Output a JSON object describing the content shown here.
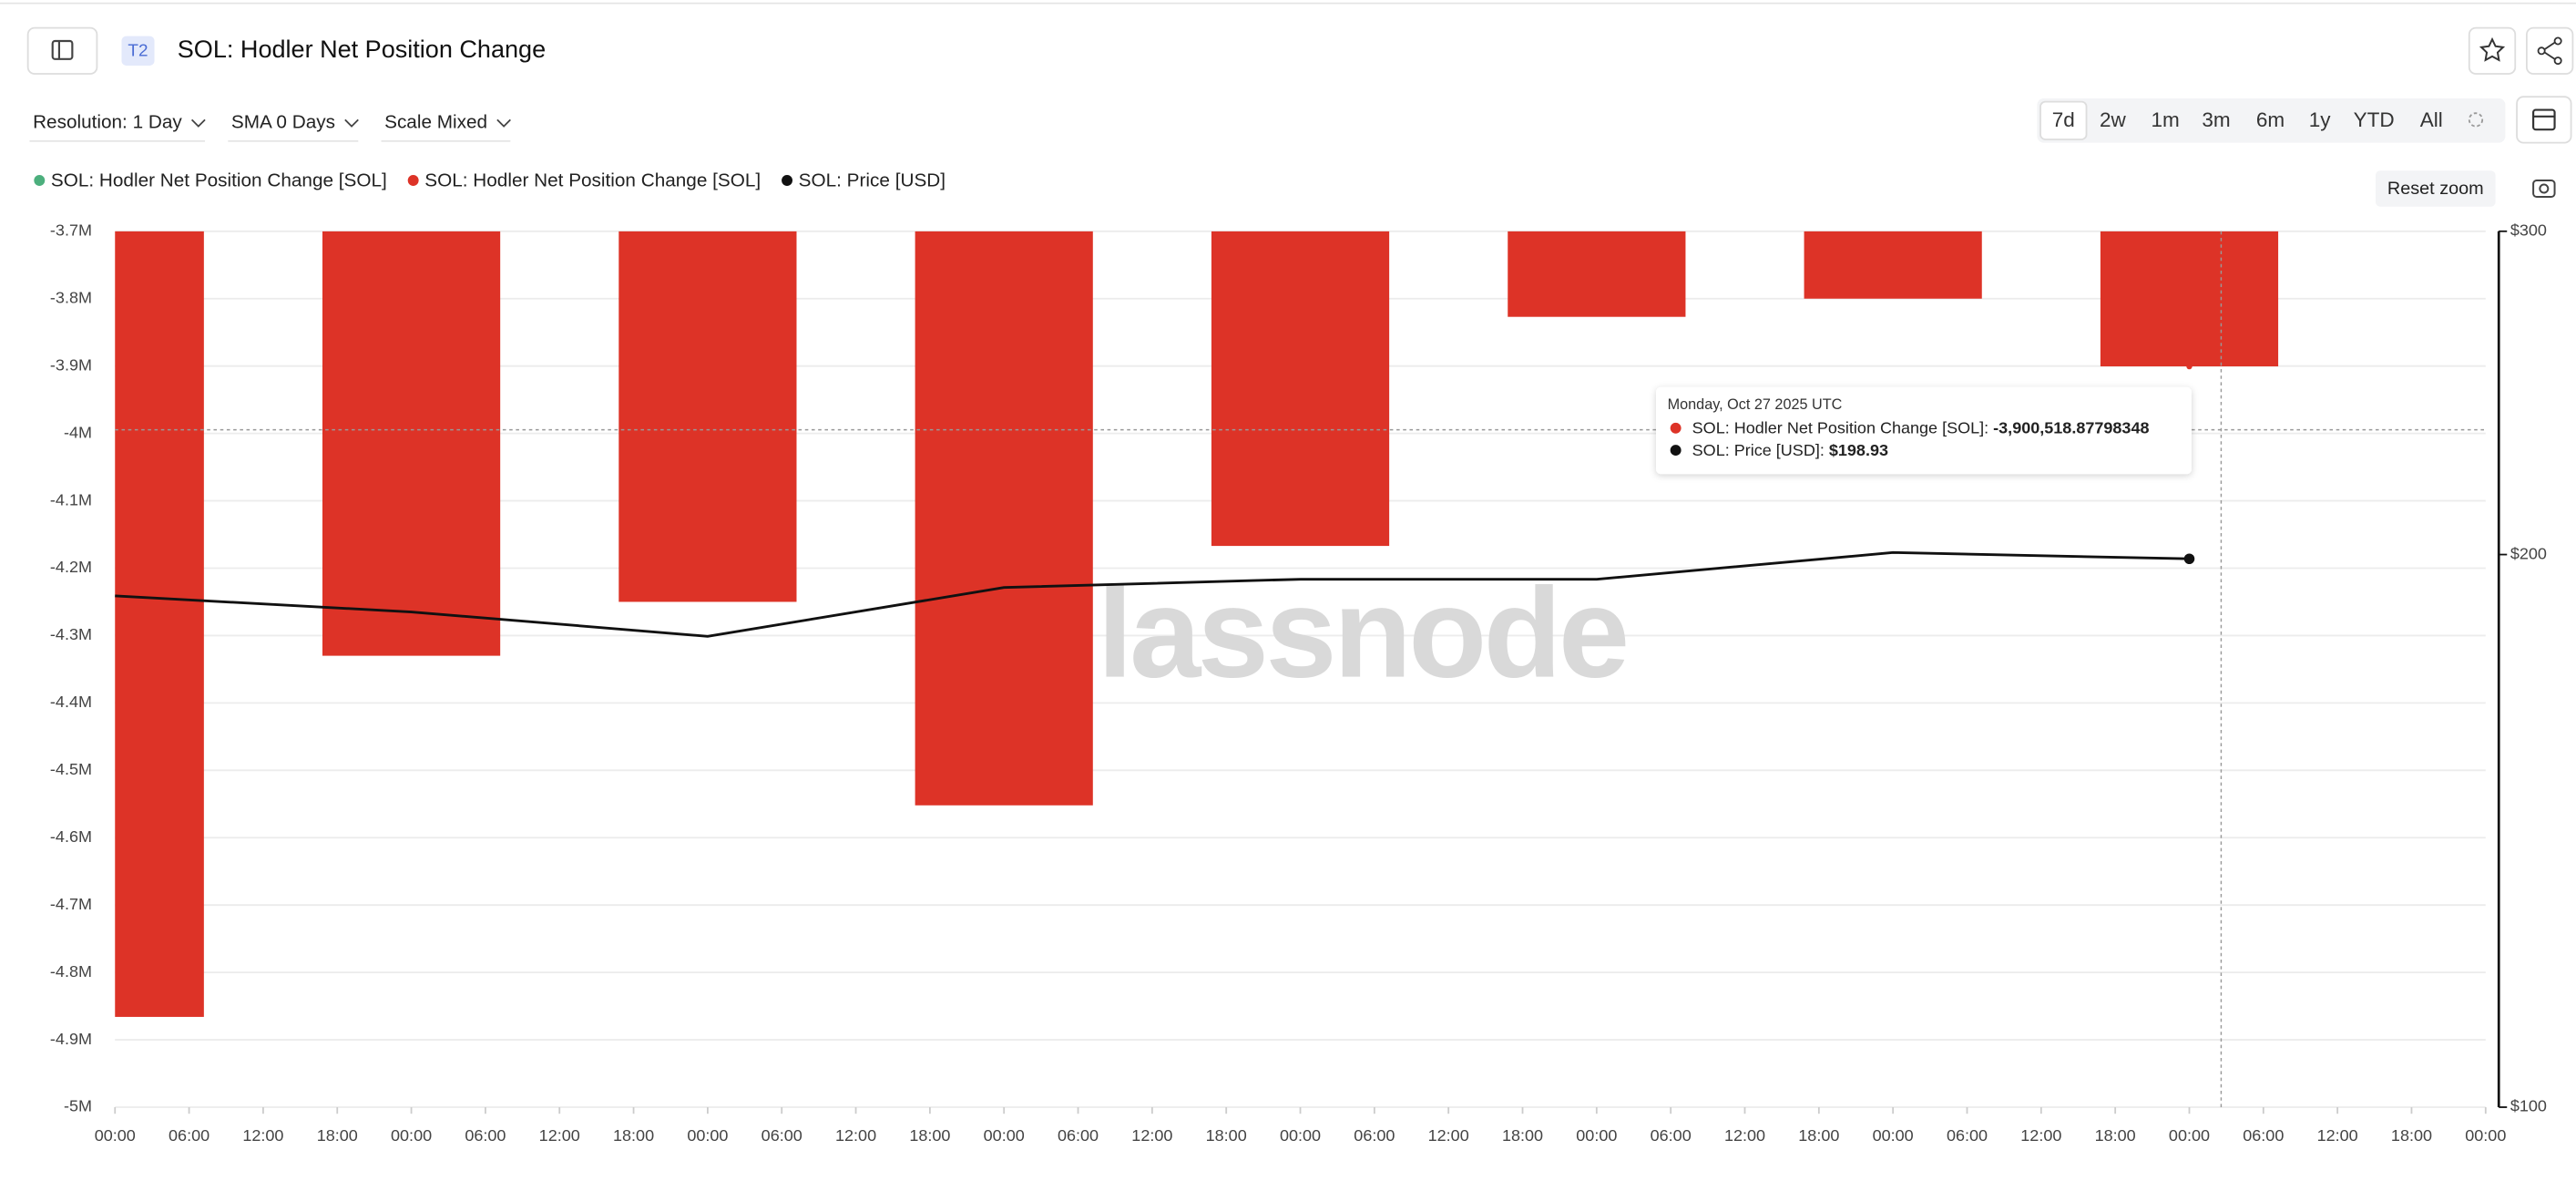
{
  "header": {
    "badge": "T2",
    "title": "SOL: Hodler Net Position Change"
  },
  "controls": {
    "dropdowns": [
      "Resolution: 1 Day",
      "SMA 0 Days",
      "Scale Mixed"
    ],
    "ranges": [
      "7d",
      "2w",
      "1m",
      "3m",
      "6m",
      "1y",
      "YTD",
      "All"
    ],
    "selected_range": "7d",
    "reset_zoom": "Reset zoom"
  },
  "chart_data": {
    "type": "bar",
    "x": [
      0,
      24,
      48,
      72,
      96,
      120,
      144,
      168
    ],
    "xlim": [
      0,
      192
    ],
    "xticks": [
      {
        "value": 0,
        "label": "00:00"
      },
      {
        "value": 6,
        "label": "06:00"
      },
      {
        "value": 12,
        "label": "12:00"
      },
      {
        "value": 18,
        "label": "18:00"
      },
      {
        "value": 24,
        "label": "00:00"
      },
      {
        "value": 30,
        "label": "06:00"
      },
      {
        "value": 36,
        "label": "12:00"
      },
      {
        "value": 42,
        "label": "18:00"
      },
      {
        "value": 48,
        "label": "00:00"
      },
      {
        "value": 54,
        "label": "06:00"
      },
      {
        "value": 60,
        "label": "12:00"
      },
      {
        "value": 66,
        "label": "18:00"
      },
      {
        "value": 72,
        "label": "00:00"
      },
      {
        "value": 78,
        "label": "06:00"
      },
      {
        "value": 84,
        "label": "12:00"
      },
      {
        "value": 90,
        "label": "18:00"
      },
      {
        "value": 96,
        "label": "00:00"
      },
      {
        "value": 102,
        "label": "06:00"
      },
      {
        "value": 108,
        "label": "12:00"
      },
      {
        "value": 114,
        "label": "18:00"
      },
      {
        "value": 120,
        "label": "00:00"
      },
      {
        "value": 126,
        "label": "06:00"
      },
      {
        "value": 132,
        "label": "12:00"
      },
      {
        "value": 138,
        "label": "18:00"
      },
      {
        "value": 144,
        "label": "00:00"
      },
      {
        "value": 150,
        "label": "06:00"
      },
      {
        "value": 156,
        "label": "12:00"
      },
      {
        "value": 162,
        "label": "18:00"
      },
      {
        "value": 168,
        "label": "00:00"
      },
      {
        "value": 174,
        "label": "06:00"
      },
      {
        "value": 180,
        "label": "12:00"
      },
      {
        "value": 186,
        "label": "18:00"
      },
      {
        "value": 192,
        "label": "00:00"
      }
    ],
    "ylim": [
      -5000000,
      -3700000
    ],
    "yticks": [
      {
        "value": -3700000,
        "label": "-3.7M"
      },
      {
        "value": -3800000,
        "label": "-3.8M"
      },
      {
        "value": -3900000,
        "label": "-3.9M"
      },
      {
        "value": -4000000,
        "label": "-4M"
      },
      {
        "value": -4100000,
        "label": "-4.1M"
      },
      {
        "value": -4200000,
        "label": "-4.2M"
      },
      {
        "value": -4300000,
        "label": "-4.3M"
      },
      {
        "value": -4400000,
        "label": "-4.4M"
      },
      {
        "value": -4500000,
        "label": "-4.5M"
      },
      {
        "value": -4600000,
        "label": "-4.6M"
      },
      {
        "value": -4700000,
        "label": "-4.7M"
      },
      {
        "value": -4800000,
        "label": "-4.8M"
      },
      {
        "value": -4900000,
        "label": "-4.9M"
      },
      {
        "value": -5000000,
        "label": "-5M"
      }
    ],
    "y2lim": [
      100,
      300
    ],
    "y2ticks": [
      {
        "value": 100,
        "label": "$100"
      },
      {
        "value": 200,
        "label": "$200"
      },
      {
        "value": 300,
        "label": "$300"
      }
    ],
    "y2log": true,
    "grid": true,
    "series": [
      {
        "name": "SOL: Hodler Net Position Change [SOL]",
        "color": "#4caf7d",
        "values": [
          null,
          null,
          null,
          null,
          null,
          null,
          null,
          null
        ]
      },
      {
        "name": "SOL: Hodler Net Position Change [SOL]",
        "color": "#dd3327",
        "values": [
          -4866000,
          -4330000,
          -4250000,
          -4552000,
          -4167000,
          -3827000,
          -3800000,
          -3900518.87798348
        ]
      },
      {
        "name": "SOL: Price [USD]",
        "color": "#111111",
        "type": "line",
        "axis": "y2",
        "values": [
          189.9,
          186.1,
          180.5,
          191.9,
          193.9,
          193.9,
          200.5,
          198.93
        ]
      }
    ],
    "watermark": "glassnode",
    "tooltip": {
      "title": "Monday, Oct 27 2025 UTC",
      "rows": [
        {
          "label": "SOL: Hodler Net Position Change [SOL]: ",
          "value": "-3,900,518.87798348"
        },
        {
          "label": "SOL: Price [USD]: ",
          "value": "$198.93"
        }
      ]
    }
  }
}
